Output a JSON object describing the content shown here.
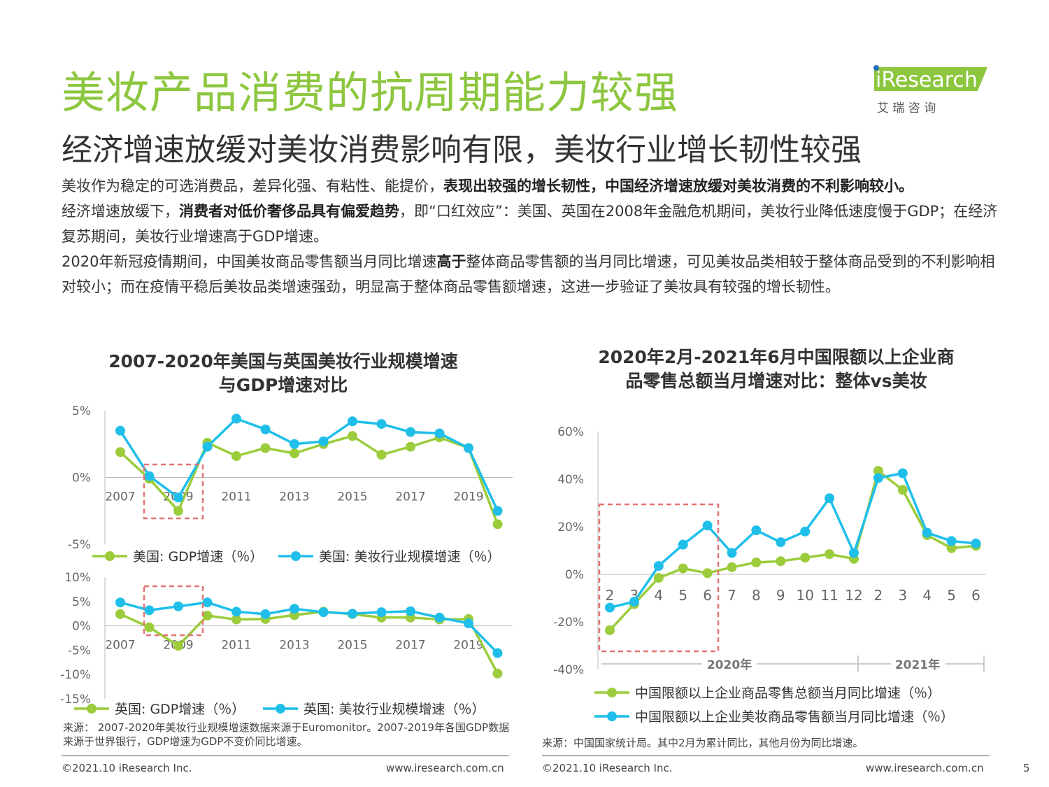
{
  "header": {
    "title": "美妆产品消费的抗周期能力较强",
    "subtitle": "经济增速放缓对美妆消费影响有限，美妆行业增长韧性较强",
    "logo_text": "iResearch",
    "logo_sub": "艾 瑞 咨 询"
  },
  "body": {
    "p1_a": "美妆作为稳定的可选消费品，差异化强、有粘性、能提价，",
    "p1_b": "表现出较强的增长韧性，中国经济增速放缓对美妆消费的不利影响较小。",
    "p2_a": "经济增速放缓下，",
    "p2_b": "消费者对低价奢侈品具有偏爱趋势",
    "p2_c": "，即“口红效应”：美国、英国在2008年金融危机期间，美妆行业降低速度慢于GDP；在经济复苏期间，美妆行业增速高于GDP增速。",
    "p3_a": "2020年新冠疫情期间，中国美妆商品零售额当月同比增速",
    "p3_b": "高于",
    "p3_c": "整体商品零售额的当月同比增速，可见美妆品类相较于整体商品受到的不利影响相对较小；而在疫情平稳后美妆品类增速强劲，明显高于整体商品零售额增速，这进一步验证了美妆具有较强的增长韧性。"
  },
  "left_title_line1": "2007-2020年美国与英国美妆行业规模增速",
  "left_title_line2": "与GDP增速对比",
  "right_title_line1": "2020年2月-2021年6月中国限额以上企业商",
  "right_title_line2": "品零售总额当月增速对比：整体vs美妆",
  "colors": {
    "green": "#9ccc3c",
    "blue": "#1fbfea",
    "title_green": "#8dc63f",
    "highlight": "#e57373"
  },
  "chart_data": [
    {
      "type": "line",
      "x": [
        2007,
        2008,
        2009,
        2010,
        2011,
        2012,
        2013,
        2014,
        2015,
        2016,
        2017,
        2018,
        2019,
        2020
      ],
      "x_tick_labels": [
        "2007",
        "2009",
        "2011",
        "2013",
        "2015",
        "2017",
        "2019"
      ],
      "y_tick_labels": [
        "5%",
        "0%",
        "-5%"
      ],
      "ylim": [
        -5,
        5
      ],
      "series": [
        {
          "name": "美国: GDP增速（％）",
          "values": [
            1.9,
            -0.1,
            -2.5,
            2.6,
            1.6,
            2.2,
            1.8,
            2.5,
            3.1,
            1.7,
            2.3,
            3.0,
            2.2,
            -3.5
          ]
        },
        {
          "name": "美国: 美妆行业规模增速（％）",
          "values": [
            3.5,
            0.1,
            -1.5,
            2.3,
            4.4,
            3.6,
            2.5,
            2.7,
            4.2,
            4.0,
            3.4,
            3.3,
            2.2,
            -2.5
          ]
        }
      ]
    },
    {
      "type": "line",
      "x": [
        2007,
        2008,
        2009,
        2010,
        2011,
        2012,
        2013,
        2014,
        2015,
        2016,
        2017,
        2018,
        2019,
        2020
      ],
      "x_tick_labels": [
        "2007",
        "2009",
        "2011",
        "2013",
        "2015",
        "2017",
        "2019"
      ],
      "y_tick_labels": [
        "10%",
        "5%",
        "0%",
        "-5%",
        "-10%",
        "-15%"
      ],
      "ylim": [
        -15,
        10
      ],
      "series": [
        {
          "name": "英国: GDP增速（％）",
          "values": [
            2.4,
            -0.3,
            -4.1,
            2.1,
            1.3,
            1.4,
            2.2,
            2.9,
            2.4,
            1.7,
            1.7,
            1.3,
            1.4,
            -9.8
          ]
        },
        {
          "name": "英国: 美妆行业规模增速（％）",
          "values": [
            4.8,
            3.2,
            4.0,
            4.8,
            2.9,
            2.4,
            3.5,
            2.8,
            2.5,
            2.8,
            3.0,
            1.7,
            0.5,
            -5.6
          ]
        }
      ]
    },
    {
      "type": "line",
      "categories": [
        "2",
        "3",
        "4",
        "5",
        "6",
        "7",
        "8",
        "9",
        "10",
        "11",
        "12",
        "2",
        "3",
        "4",
        "5",
        "6"
      ],
      "period_labels": [
        "2020年",
        "2021年"
      ],
      "y_tick_labels": [
        "60%",
        "40%",
        "20%",
        "0%",
        "-20%",
        "-40%"
      ],
      "ylim": [
        -40,
        60
      ],
      "series": [
        {
          "name": "中国限额以上企业商品零售总额当月同比增速（％）",
          "values": [
            -23.5,
            -12.5,
            -1.5,
            2.5,
            0.5,
            3.0,
            5.0,
            5.5,
            7.0,
            8.5,
            6.5,
            43.5,
            35.5,
            16.5,
            11.0,
            12.0
          ]
        },
        {
          "name": "中国限额以上企业美妆商品零售额当月同比增速（％）",
          "values": [
            -14.0,
            -11.5,
            3.5,
            12.5,
            20.5,
            9.0,
            18.5,
            13.5,
            18.0,
            32.0,
            9.0,
            40.5,
            42.5,
            17.5,
            14.0,
            13.0
          ]
        }
      ]
    }
  ],
  "left_source": "来源： 2007-2020年美妆行业规模增速数据来源于Euromonitor。2007-2019年各国GDP数据来源于世界银行，GDP增速为GDP不变价同比增速。",
  "right_source": "来源：中国国家统计局。其中2月为累计同比，其他月份为同比增速。",
  "footer": {
    "copyright": "©2021.10 iResearch Inc.",
    "url": "www.iresearch.com.cn",
    "page": "5"
  }
}
